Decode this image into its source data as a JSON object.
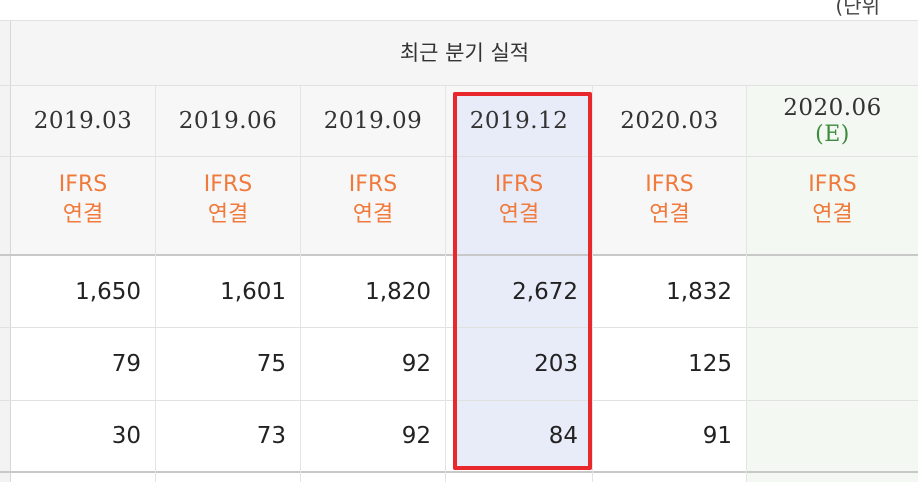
{
  "group_title": "최근 분기 실적",
  "top_right_fragment": "(단위",
  "columns": [
    {
      "period": "2019.03",
      "acc1": "IFRS",
      "acc2": "연결"
    },
    {
      "period": "2019.06",
      "acc1": "IFRS",
      "acc2": "연결"
    },
    {
      "period": "2019.09",
      "acc1": "IFRS",
      "acc2": "연결"
    },
    {
      "period": "2019.12",
      "acc1": "IFRS",
      "acc2": "연결"
    },
    {
      "period": "2020.03",
      "acc1": "IFRS",
      "acc2": "연결"
    },
    {
      "period": "2020.06",
      "estimate": "(E)",
      "acc1": "IFRS",
      "acc2": "연결"
    }
  ],
  "rows": [
    [
      "1,650",
      "1,601",
      "1,820",
      "2,672",
      "1,832",
      ""
    ],
    [
      "79",
      "75",
      "92",
      "203",
      "125",
      ""
    ],
    [
      "30",
      "73",
      "92",
      "84",
      "91",
      ""
    ]
  ],
  "highlighted_column": "2019.12",
  "colors": {
    "accounting": "#f07a3c",
    "estimate": "#3d8b3d",
    "highlight_border": "#e8282c",
    "highlight_fill": "#e8ecf8"
  }
}
